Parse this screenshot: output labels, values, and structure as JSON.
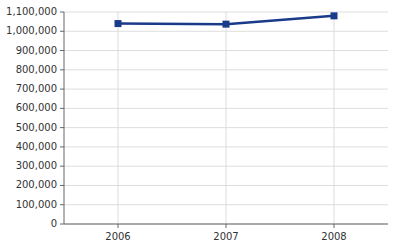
{
  "chart_data": {
    "type": "line",
    "x": [
      2006,
      2007,
      2008
    ],
    "values": [
      1040000,
      1037000,
      1080000
    ],
    "color": "#1a3a8a",
    "marker": "square",
    "xlim": [
      2005.5,
      2008.5
    ],
    "xticks": [
      2006,
      2007,
      2008
    ],
    "ylim": [
      0,
      1100000
    ],
    "yticks": [
      0,
      {
        "value": 100000,
        "label": "100,000"
      },
      {
        "value": 200000,
        "label": "200,000"
      },
      {
        "value": 300000,
        "label": "300,000"
      },
      {
        "value": 400000,
        "label": "400,000"
      },
      {
        "value": 500000,
        "label": "500,000"
      },
      {
        "value": 600000,
        "label": "600,000"
      },
      {
        "value": 700000,
        "label": "700,000"
      },
      {
        "value": 800000,
        "label": "800,000"
      },
      {
        "value": 900000,
        "label": "900,000"
      },
      {
        "value": 1000000,
        "label": "1,000,000"
      },
      {
        "value": 1100000,
        "label": "1,100,000"
      }
    ],
    "grid": true
  }
}
